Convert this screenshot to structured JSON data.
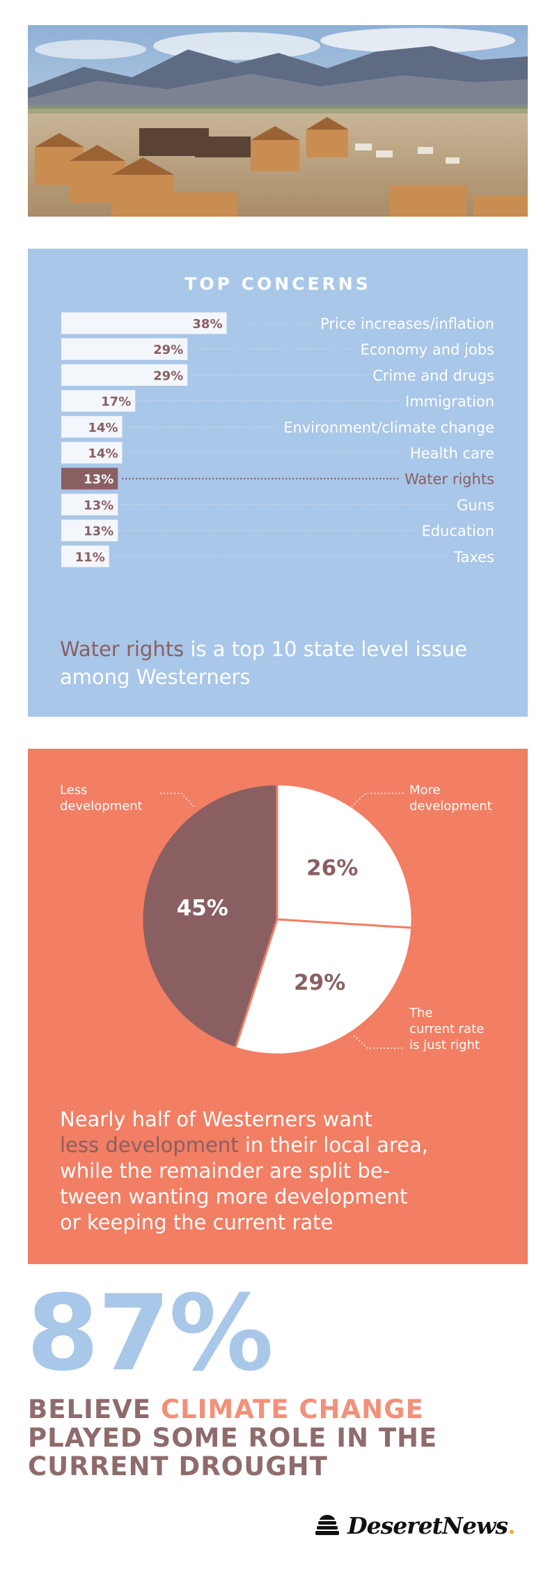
{
  "photo": {
    "subject": "housing-development-construction-photo"
  },
  "concerns": {
    "title": "TOP CONCERNS",
    "caption_highlight": "Water rights",
    "caption_rest": " is a top 10 state level issue among Westerners"
  },
  "development": {
    "caption_line1": "Nearly half of Westerners want",
    "caption_highlight": "less development",
    "caption_rest": " in their local area,\nwhile the remainder are split be-\ntween wanting more development\nor keeping the current rate"
  },
  "stat": {
    "value": "87%",
    "line_prefix": "BELIEVE ",
    "highlight": "CLIMATE CHANGE",
    "line_rest": " PLAYED SOME ROLE IN THE CURRENT DROUGHT"
  },
  "brand": {
    "name": "DeseretNews",
    "dot": ".",
    "icon": "beehive-icon"
  },
  "colors": {
    "blue": "#a9c7e8",
    "orange": "#f27e63",
    "mauve": "#8a5f62",
    "white": "#ffffff",
    "bar_light": "#f3f6fb",
    "stat_text": "#8f6b6b",
    "stat_highlight": "#f2907a"
  },
  "chart_data": [
    {
      "type": "bar",
      "orientation": "horizontal",
      "title": "TOP CONCERNS",
      "categories": [
        "Price increases/inflation",
        "Economy and jobs",
        "Crime and drugs",
        "Immigration",
        "Environment/climate change",
        "Health care",
        "Water rights",
        "Guns",
        "Education",
        "Taxes"
      ],
      "values": [
        38,
        29,
        29,
        17,
        14,
        14,
        13,
        13,
        13,
        11
      ],
      "value_labels": [
        "38%",
        "29%",
        "29%",
        "17%",
        "14%",
        "14%",
        "13%",
        "13%",
        "13%",
        "11%"
      ],
      "highlight_category": "Water rights",
      "xlim": [
        0,
        100
      ]
    },
    {
      "type": "pie",
      "slices": [
        {
          "label": "More development",
          "value": 26,
          "value_label": "26%"
        },
        {
          "label": "The current rate is just right",
          "value": 29,
          "value_label": "29%"
        },
        {
          "label": "Less development",
          "value": 45,
          "value_label": "45%"
        }
      ],
      "slice_labels_display": [
        "More\ndevelopment",
        "The\ncurrent rate\nis just right",
        "Less\ndevelopment"
      ]
    }
  ]
}
